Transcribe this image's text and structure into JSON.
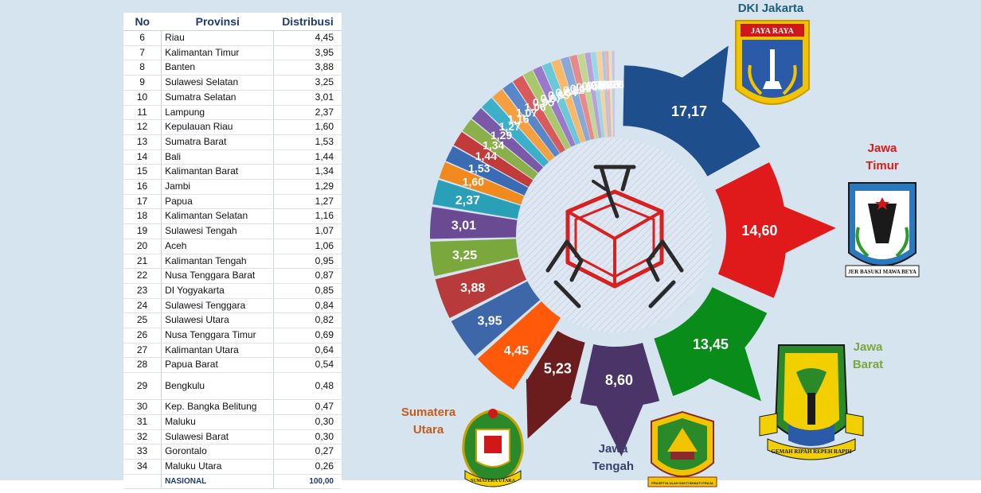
{
  "table": {
    "headers": {
      "no": "No",
      "provinsi": "Provinsi",
      "distribusi": "Distribusi"
    },
    "rows": [
      {
        "no": "6",
        "provinsi": "Riau",
        "distribusi": "4,45"
      },
      {
        "no": "7",
        "provinsi": "Kalimantan Timur",
        "distribusi": "3,95"
      },
      {
        "no": "8",
        "provinsi": "Banten",
        "distribusi": "3,88"
      },
      {
        "no": "9",
        "provinsi": "Sulawesi Selatan",
        "distribusi": "3,25"
      },
      {
        "no": "10",
        "provinsi": "Sumatra Selatan",
        "distribusi": "3,01"
      },
      {
        "no": "11",
        "provinsi": "Lampung",
        "distribusi": "2,37"
      },
      {
        "no": "12",
        "provinsi": "Kepulauan Riau",
        "distribusi": "1,60"
      },
      {
        "no": "13",
        "provinsi": "Sumatra Barat",
        "distribusi": "1,53"
      },
      {
        "no": "14",
        "provinsi": "Bali",
        "distribusi": "1,44"
      },
      {
        "no": "15",
        "provinsi": "Kalimantan Barat",
        "distribusi": "1,34"
      },
      {
        "no": "16",
        "provinsi": "Jambi",
        "distribusi": "1,29"
      },
      {
        "no": "17",
        "provinsi": "Papua",
        "distribusi": "1,27"
      },
      {
        "no": "18",
        "provinsi": "Kalimantan Selatan",
        "distribusi": "1,16"
      },
      {
        "no": "19",
        "provinsi": "Sulawesi Tengah",
        "distribusi": "1,07"
      },
      {
        "no": "20",
        "provinsi": "Aceh",
        "distribusi": "1,06"
      },
      {
        "no": "21",
        "provinsi": "Kalimantan Tengah",
        "distribusi": "0,95"
      },
      {
        "no": "22",
        "provinsi": "Nusa Tenggara Barat",
        "distribusi": "0,87"
      },
      {
        "no": "23",
        "provinsi": "DI Yogyakarta",
        "distribusi": "0,85"
      },
      {
        "no": "24",
        "provinsi": "Sulawesi Tenggara",
        "distribusi": "0,84"
      },
      {
        "no": "25",
        "provinsi": "Sulawesi Utara",
        "distribusi": "0,82"
      },
      {
        "no": "26",
        "provinsi": "Nusa Tenggara Timur",
        "distribusi": "0,69"
      },
      {
        "no": "27",
        "provinsi": "Kalimantan Utara",
        "distribusi": "0,64"
      },
      {
        "no": "28",
        "provinsi": "Papua Barat",
        "distribusi": "0,54"
      },
      {
        "no": "29",
        "provinsi": "Bengkulu",
        "distribusi": "0,48"
      },
      {
        "no": "30",
        "provinsi": "Kep. Bangka Belitung",
        "distribusi": "0,47"
      },
      {
        "no": "31",
        "provinsi": "Maluku",
        "distribusi": "0,30"
      },
      {
        "no": "32",
        "provinsi": "Sulawesi Barat",
        "distribusi": "0,30"
      },
      {
        "no": "33",
        "provinsi": "Gorontalo",
        "distribusi": "0,27"
      },
      {
        "no": "34",
        "provinsi": "Maluku Utara",
        "distribusi": "0,26"
      }
    ],
    "total": {
      "label": "NASIONAL",
      "value": "100,00"
    }
  },
  "callouts": {
    "dki": "DKI Jakarta",
    "jatim": [
      "Jawa",
      "Timur"
    ],
    "jabar": [
      "Jawa",
      "Barat"
    ],
    "jateng": [
      "Jawa",
      "Tengah"
    ],
    "sumut": [
      "Sumatera",
      "Utara"
    ]
  },
  "emblems": {
    "dki_banner": "JAYA RAYA",
    "jatim_motto": "JER BASUKI MAWA BEYA",
    "jabar_motto": "GEMAH RIPAH REPEH RAPIH",
    "jateng_ribbon": "PRASETYA ULAH SAKTI BHAKTI PRAJA",
    "sumut_ribbon": "SUMATERA UTARA"
  },
  "chart_data": {
    "type": "pie",
    "variant": "exploded donut, clockwise from 12 o'clock",
    "slices": [
      {
        "label": "17,17",
        "name": "DKI Jakarta",
        "value": 17.17,
        "color": "#1f4e8c"
      },
      {
        "label": "14,60",
        "name": "Jawa Timur",
        "value": 14.6,
        "color": "#e01a1a"
      },
      {
        "label": "13,45",
        "name": "Jawa Barat",
        "value": 13.45,
        "color": "#0a8c1a"
      },
      {
        "label": "8,60",
        "name": "Jawa Tengah",
        "value": 8.6,
        "color": "#4b3468"
      },
      {
        "label": "5,23",
        "name": "Sumatera Utara",
        "value": 5.23,
        "color": "#6b1c1c"
      },
      {
        "label": "4,45",
        "name": "Riau",
        "value": 4.45,
        "color": "#ff5a0a"
      },
      {
        "label": "3,95",
        "name": "Kalimantan Timur",
        "value": 3.95,
        "color": "#3d67a8"
      },
      {
        "label": "3,88",
        "name": "Banten",
        "value": 3.88,
        "color": "#b83a3a"
      },
      {
        "label": "3,25",
        "name": "Sulawesi Selatan",
        "value": 3.25,
        "color": "#7aa83c"
      },
      {
        "label": "3,01",
        "name": "Sumatra Selatan",
        "value": 3.01,
        "color": "#6a4a93"
      },
      {
        "label": "2,37",
        "name": "Lampung",
        "value": 2.37,
        "color": "#2aa0b8"
      },
      {
        "label": "1,60",
        "name": "Kepulauan Riau",
        "value": 1.6,
        "color": "#f08a1e"
      },
      {
        "label": "1,53",
        "name": "Sumatra Barat",
        "value": 1.53,
        "color": "#3b6cb3"
      },
      {
        "label": "1,44",
        "name": "Bali",
        "value": 1.44,
        "color": "#c23a3a"
      },
      {
        "label": "1,34",
        "name": "Kalimantan Barat",
        "value": 1.34,
        "color": "#8bb04a"
      },
      {
        "label": "1,29",
        "name": "Jambi",
        "value": 1.29,
        "color": "#7a5aa8"
      },
      {
        "label": "1,27",
        "name": "Papua",
        "value": 1.27,
        "color": "#3bb0c8"
      },
      {
        "label": "1,16",
        "name": "Kalimantan Selatan",
        "value": 1.16,
        "color": "#f4a040"
      },
      {
        "label": "1,07",
        "name": "Sulawesi Tengah",
        "value": 1.07,
        "color": "#5a86c8"
      },
      {
        "label": "1,06",
        "name": "Aceh",
        "value": 1.06,
        "color": "#d85a5a"
      },
      {
        "label": "0,95",
        "name": "Kalimantan Tengah",
        "value": 0.95,
        "color": "#a8c86a"
      },
      {
        "label": "0,87",
        "name": "Nusa Tenggara Barat",
        "value": 0.87,
        "color": "#9a7ac8"
      },
      {
        "label": "0,85",
        "name": "DI Yogyakarta",
        "value": 0.85,
        "color": "#6ac8d8"
      },
      {
        "label": "0,84",
        "name": "Sulawesi Tenggara",
        "value": 0.84,
        "color": "#f8b868"
      },
      {
        "label": "0,82",
        "name": "Sulawesi Utara",
        "value": 0.82,
        "color": "#88a8d8"
      },
      {
        "label": "0,69",
        "name": "Nusa Tenggara Timur",
        "value": 0.69,
        "color": "#e88a8a"
      },
      {
        "label": "0,64",
        "name": "Kalimantan Utara",
        "value": 0.64,
        "color": "#c0d890"
      },
      {
        "label": "0,54",
        "name": "Papua Barat",
        "value": 0.54,
        "color": "#b8a0d8"
      },
      {
        "label": "0,48",
        "name": "Bengkulu",
        "value": 0.48,
        "color": "#98d8e8"
      },
      {
        "label": "0,47",
        "name": "Kep. Bangka Belitung",
        "value": 0.47,
        "color": "#fad098"
      },
      {
        "label": "0,30",
        "name": "Maluku",
        "value": 0.3,
        "color": "#b0c4e4"
      },
      {
        "label": "0,30",
        "name": "Sulawesi Barat",
        "value": 0.3,
        "color": "#f0b0b0"
      },
      {
        "label": "0,27",
        "name": "Gorontalo",
        "value": 0.27,
        "color": "#d8e8b8"
      },
      {
        "label": "0,26",
        "name": "Maluku Utara",
        "value": 0.26,
        "color": "#d0c0e8"
      }
    ]
  }
}
